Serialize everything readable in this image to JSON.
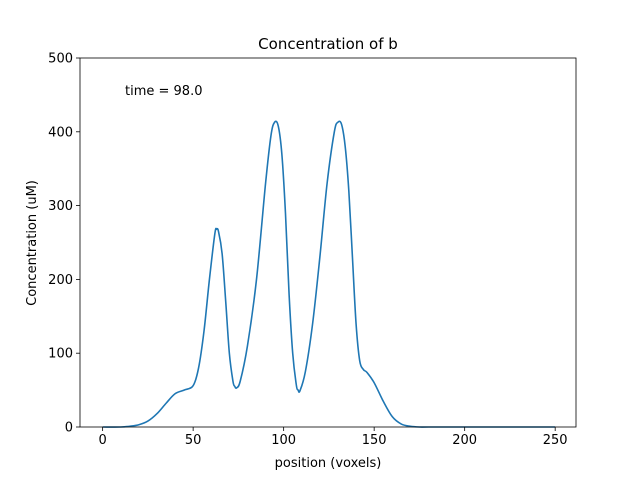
{
  "chart_data": {
    "type": "line",
    "title": "Concentration of b",
    "xlabel": "position (voxels)",
    "ylabel": "Concentration (uM)",
    "annotation": "time = 98.0",
    "xlim": [
      -12.5,
      261.5
    ],
    "ylim": [
      0,
      500
    ],
    "xticks": [
      0,
      50,
      100,
      150,
      200,
      250
    ],
    "yticks": [
      0,
      100,
      200,
      300,
      400,
      500
    ],
    "grid": false,
    "series": [
      {
        "color": "#1f77b4",
        "x": [
          0,
          10,
          15,
          20,
          25,
          30,
          35,
          40,
          45,
          50,
          53,
          56,
          59,
          62,
          63,
          64,
          66,
          68,
          70,
          72,
          73,
          74,
          76,
          80,
          85,
          90,
          93,
          95,
          97,
          99,
          101,
          103,
          105,
          107,
          108,
          109,
          112,
          116,
          120,
          124,
          128,
          130,
          132,
          134,
          136,
          138,
          140,
          142,
          144,
          146,
          150,
          155,
          160,
          165,
          170,
          175,
          180,
          200,
          250
        ],
        "y": [
          0,
          0,
          1,
          3,
          8,
          18,
          32,
          45,
          50,
          56,
          80,
          130,
          200,
          262,
          268,
          265,
          235,
          170,
          100,
          62,
          55,
          53,
          62,
          110,
          200,
          330,
          395,
          413,
          408,
          370,
          290,
          180,
          100,
          57,
          50,
          49,
          75,
          140,
          230,
          330,
          400,
          413,
          410,
          380,
          320,
          230,
          140,
          90,
          78,
          74,
          60,
          35,
          14,
          4,
          1,
          0,
          0,
          0,
          0
        ]
      }
    ]
  }
}
